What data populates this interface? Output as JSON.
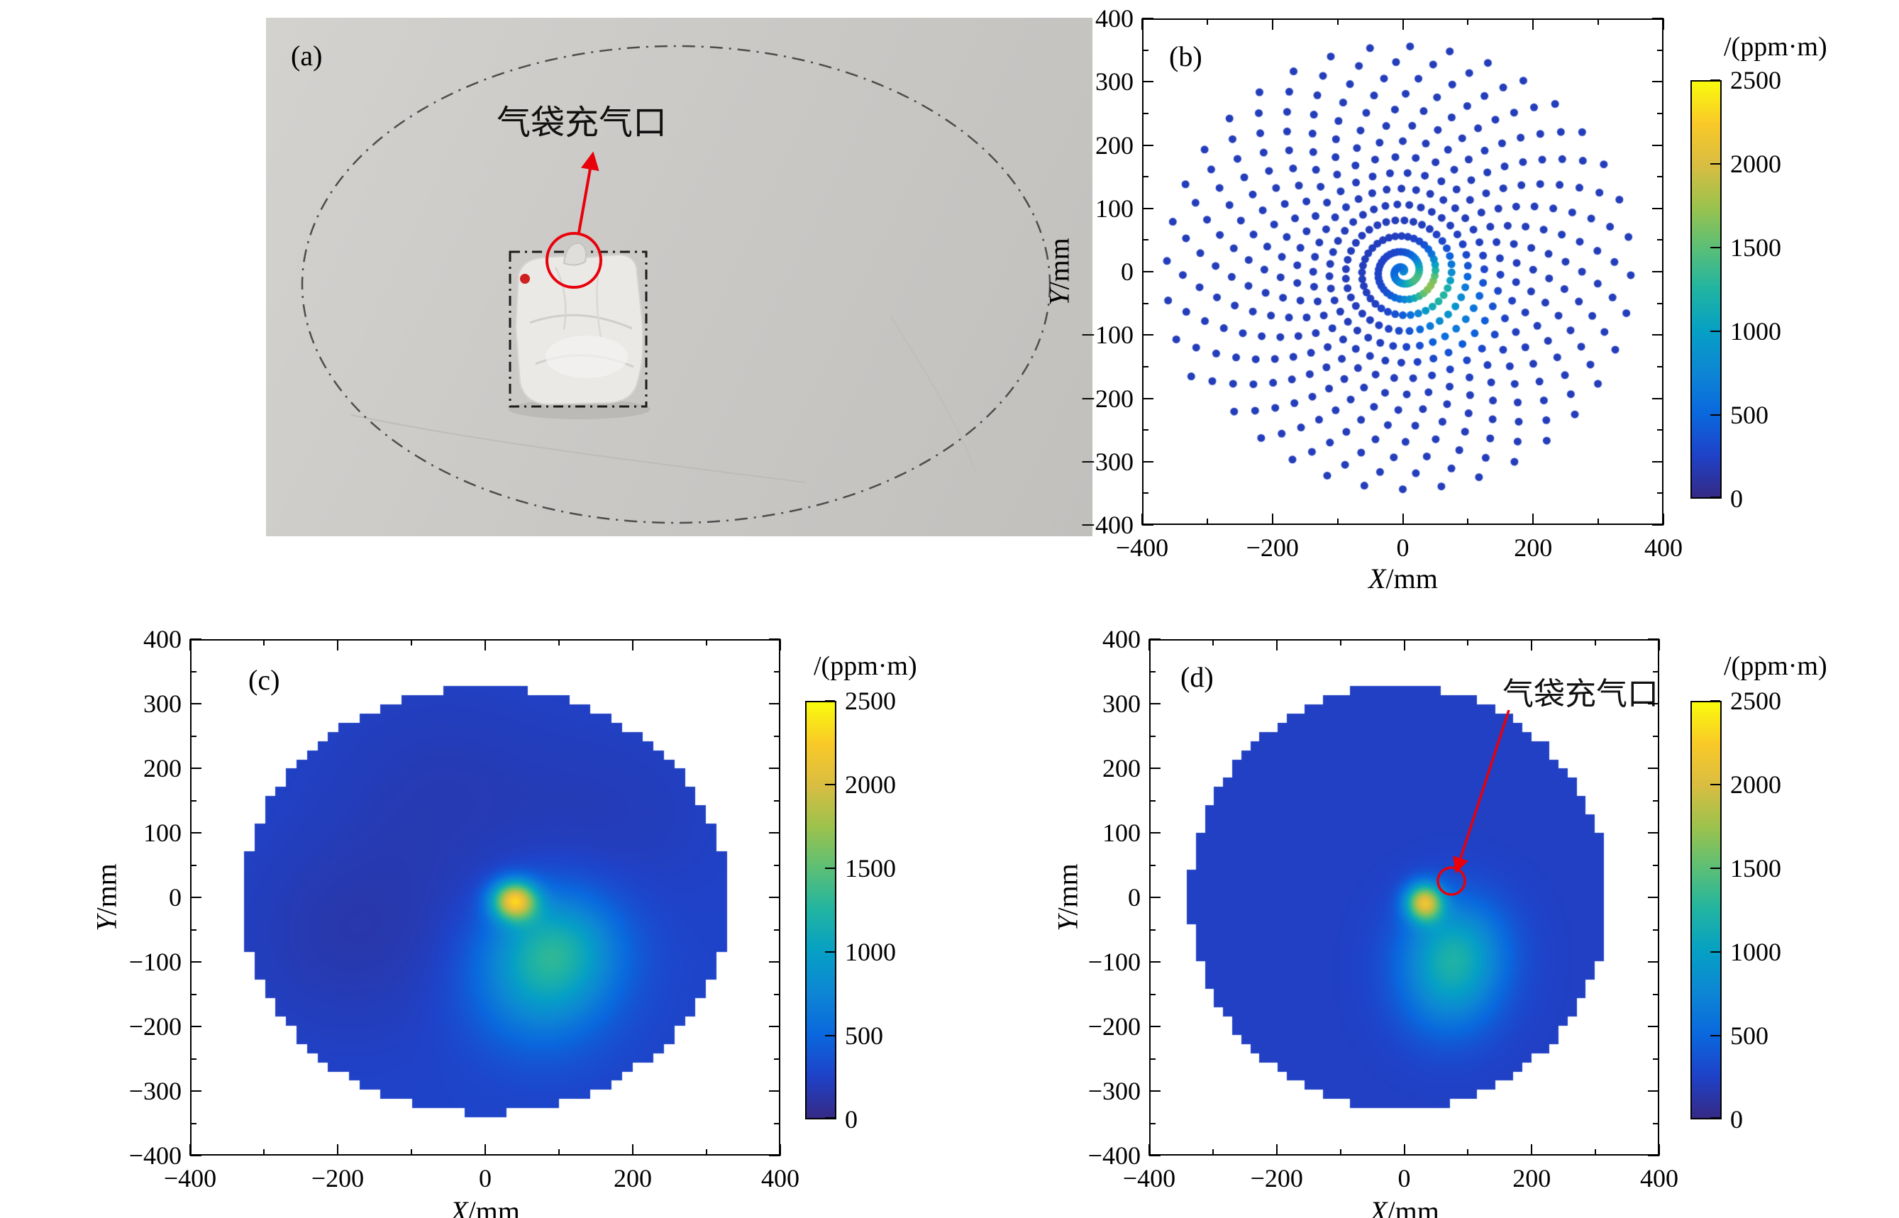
{
  "figure_tags": {
    "a": "(a)",
    "b": "(b)",
    "c": "(c)",
    "d": "(d)"
  },
  "annotations": {
    "a": "气袋充气口",
    "d": "气袋充气口"
  },
  "axis": {
    "xlabel_var": "X",
    "xlabel_unit": "/mm",
    "ylabel_var": "Y",
    "ylabel_unit": "/mm"
  },
  "colorbar": {
    "title": "/(ppm·m)",
    "ticks": [
      0,
      500,
      1000,
      1500,
      2000,
      2500
    ],
    "range": [
      0,
      2500
    ]
  },
  "colors": {
    "annotation_red": "#e8000b",
    "frame": "#000000"
  },
  "colormap_stops": [
    "#352a87",
    "#1f42c8",
    "#0a68de",
    "#0d86d4",
    "#06a0c5",
    "#21b4a2",
    "#5bbf77",
    "#9cc24d",
    "#d9bd42",
    "#f9c928",
    "#f9fb0e"
  ],
  "chart_data": [
    {
      "panel": "b",
      "type": "scatter",
      "pattern": "archimedean_spiral_scan",
      "n_points": 530,
      "delta_theta_deg": 9.9,
      "radius_growth_mm_per_rad": 4.0,
      "point_radius_px": 5.5,
      "xlim": [
        -400,
        400
      ],
      "ylim": [
        -400,
        400
      ],
      "xticks": [
        -400,
        -200,
        0,
        200,
        400
      ],
      "yticks": [
        400,
        300,
        200,
        100,
        0,
        -100,
        -200,
        -300,
        -400
      ],
      "value_range": [
        0,
        2500
      ],
      "base_value": 200,
      "hotspots": [
        {
          "x": 35,
          "y": -15,
          "sigma": 28,
          "amplitude": 1250
        },
        {
          "x": 70,
          "y": -60,
          "sigma": 42,
          "amplitude": 600
        }
      ]
    },
    {
      "panel": "c",
      "type": "heatmap",
      "xlim": [
        -400,
        400
      ],
      "ylim": [
        -400,
        400
      ],
      "xticks": [
        -400,
        -200,
        0,
        200,
        400
      ],
      "yticks": [
        400,
        300,
        200,
        100,
        0,
        -100,
        -200,
        -300,
        -400
      ],
      "value_range": [
        0,
        2500
      ],
      "grid_step_mm": 14.3,
      "region_circle": {
        "cx": 0,
        "cy": -5,
        "r": 332
      },
      "base_value": 260,
      "blobs": [
        {
          "x": 40,
          "y": -5,
          "sigma": 21,
          "amplitude": 1800
        },
        {
          "x": 95,
          "y": -75,
          "sigma": 60,
          "amplitude": 800
        },
        {
          "x": 75,
          "y": -150,
          "sigma": 65,
          "amplitude": 450
        },
        {
          "x": -180,
          "y": -60,
          "sigma": 110,
          "amplitude": -110
        },
        {
          "x": -60,
          "y": 170,
          "sigma": 120,
          "amplitude": -80
        },
        {
          "x": 180,
          "y": 130,
          "sigma": 100,
          "amplitude": -60
        }
      ]
    },
    {
      "panel": "d",
      "type": "heatmap",
      "xlim": [
        -400,
        400
      ],
      "ylim": [
        -400,
        400
      ],
      "xticks": [
        -400,
        -200,
        0,
        200,
        400
      ],
      "yticks": [
        400,
        300,
        200,
        100,
        0,
        -100,
        -200,
        -300,
        -400
      ],
      "value_range": [
        0,
        2500
      ],
      "grid_step_mm": 14.3,
      "region_circle": {
        "cx": -8,
        "cy": 0,
        "r": 330
      },
      "base_value": 230,
      "blobs": [
        {
          "x": 32,
          "y": -8,
          "sigma": 20,
          "amplitude": 1700
        },
        {
          "x": 80,
          "y": -80,
          "sigma": 55,
          "amplitude": 760
        },
        {
          "x": 70,
          "y": -150,
          "sigma": 55,
          "amplitude": 420
        }
      ],
      "annotation_target": {
        "x": 75,
        "y": 25,
        "r": 22
      }
    }
  ]
}
